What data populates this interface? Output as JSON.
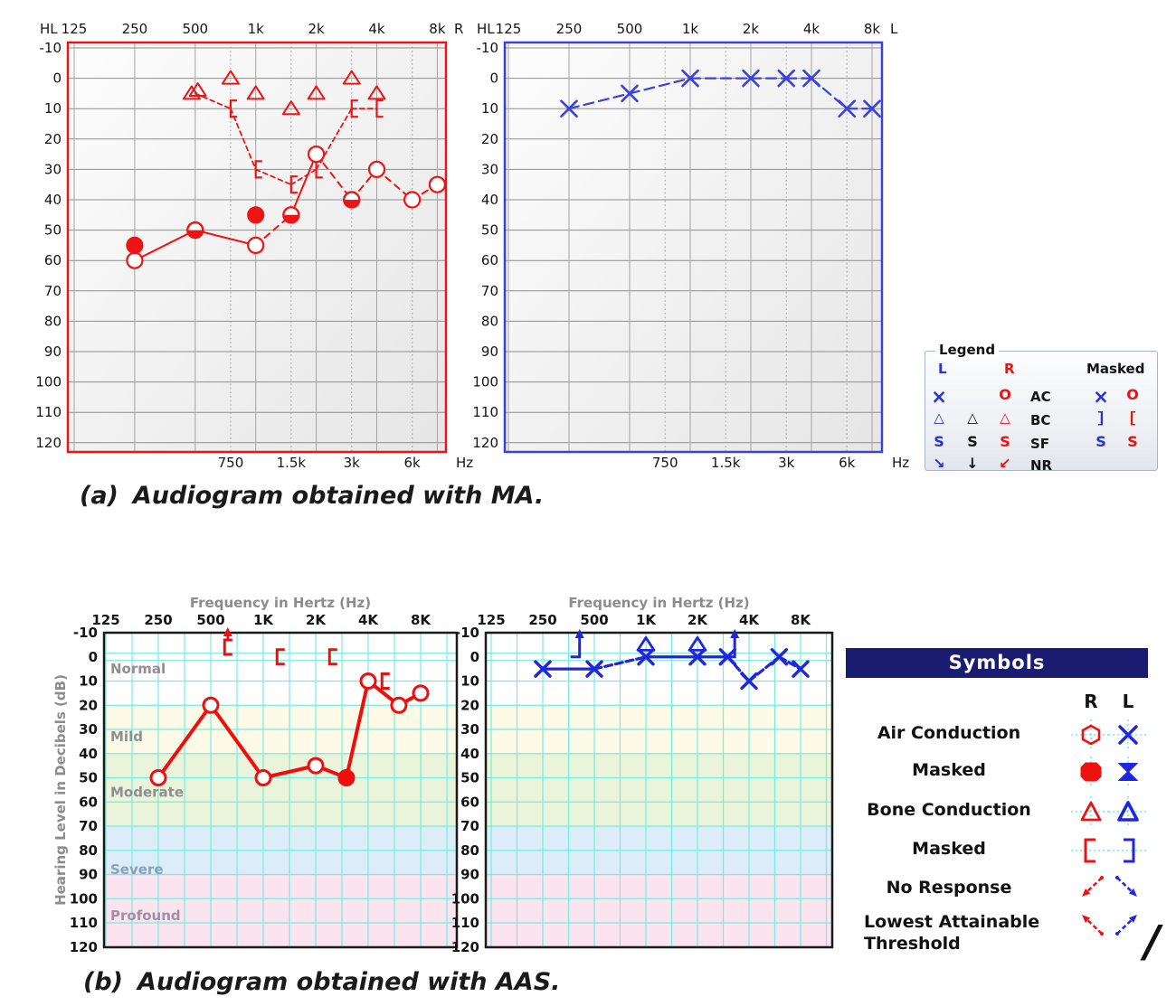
{
  "captions": {
    "a_index": "(a)",
    "a_text": "Audiogram obtained with MA.",
    "b_index": "(b)",
    "b_text": "Audiogram obtained with AAS."
  },
  "colors": {
    "right_red": "#ee1414",
    "left_blue": "#3a41dc",
    "aas_red": "#f20d0d",
    "aas_blue": "#2026e0",
    "cyan_grid": "#74eede",
    "navy_header": "#1b1b72",
    "axis_gray": "#8c8c8c"
  },
  "db_ticks": [
    "-10",
    "0",
    "10",
    "20",
    "30",
    "40",
    "50",
    "60",
    "70",
    "80",
    "90",
    "100",
    "110",
    "120"
  ],
  "chart_data": [
    {
      "id": "ma_right",
      "type": "audiogram",
      "ear_label": "R",
      "corner_label": "HL",
      "hz_label": "Hz",
      "x_ticks": [
        "125",
        "250",
        "500",
        "1k",
        "2k",
        "4k",
        "8k"
      ],
      "x_minor_ticks": [
        "750",
        "1.5k",
        "3k",
        "6k"
      ],
      "ylim": [
        -10,
        120
      ],
      "ac_line": [
        [
          250,
          60
        ],
        [
          500,
          50
        ],
        [
          1000,
          55
        ],
        [
          1500,
          45
        ],
        [
          2000,
          25
        ],
        [
          3000,
          40
        ],
        [
          4000,
          30
        ],
        [
          6000,
          40
        ],
        [
          8000,
          35
        ]
      ],
      "ac_marker_fill": [
        "open",
        "half",
        "open",
        "half",
        "open",
        "half",
        "open",
        "open",
        "open"
      ],
      "ac_masked": [
        [
          250,
          55
        ],
        [
          1000,
          45
        ]
      ],
      "bc_triangles": [
        [
          480,
          5
        ],
        [
          515,
          4
        ],
        [
          750,
          0
        ],
        [
          1000,
          5
        ],
        [
          1500,
          10
        ],
        [
          2000,
          5
        ],
        [
          3000,
          0
        ],
        [
          4000,
          5
        ]
      ],
      "bc_masked_chain": [
        [
          500,
          5
        ],
        [
          750,
          10
        ],
        [
          1000,
          30
        ],
        [
          1500,
          35
        ],
        [
          2000,
          30
        ],
        [
          3000,
          10
        ],
        [
          4000,
          10
        ]
      ]
    },
    {
      "id": "ma_left",
      "type": "audiogram",
      "ear_label": "L",
      "corner_label": "HL",
      "hz_label": "Hz",
      "x_ticks": [
        "125",
        "250",
        "500",
        "1k",
        "2k",
        "4k",
        "8k"
      ],
      "x_minor_ticks": [
        "750",
        "1.5k",
        "3k",
        "6k"
      ],
      "ylim": [
        -10,
        120
      ],
      "ac_line": [
        [
          250,
          10
        ],
        [
          500,
          5
        ],
        [
          1000,
          0
        ],
        [
          2000,
          0
        ],
        [
          3000,
          0
        ],
        [
          4000,
          0
        ],
        [
          6000,
          10
        ],
        [
          8000,
          10
        ]
      ]
    },
    {
      "id": "aas_right",
      "type": "audiogram",
      "x_title": "Frequency in Hertz (Hz)",
      "y_title": "Hearing Level in Decibels (dB)",
      "x_ticks": [
        "125",
        "250",
        "500",
        "1K",
        "2K",
        "4K",
        "8K"
      ],
      "ylim": [
        -10,
        120
      ],
      "show_band_labels": true,
      "bands": [
        {
          "label": "Normal",
          "from": -10,
          "to": 20,
          "color": "#ffffff",
          "label_color": "#8f8f8f",
          "label_db": 5
        },
        {
          "label": "Mild",
          "from": 20,
          "to": 40,
          "color": "#fdfbe7",
          "label_color": "#8f8f8f",
          "label_db": 33
        },
        {
          "label": "Moderate",
          "from": 40,
          "to": 70,
          "color": "#eaf4da",
          "label_color": "#8f8f8f",
          "label_db": 56
        },
        {
          "label": "Severe",
          "from": 70,
          "to": 90,
          "color": "#dcecf8",
          "label_color": "#86a0bd",
          "label_db": 88
        },
        {
          "label": "Profound",
          "from": 90,
          "to": 120,
          "color": "#fbe4ef",
          "label_color": "#a18fa6",
          "label_db": 107
        }
      ],
      "ac_line": [
        [
          250,
          50
        ],
        [
          500,
          20
        ],
        [
          1000,
          50
        ],
        [
          2000,
          45
        ],
        [
          3000,
          50
        ],
        [
          4000,
          10
        ],
        [
          6000,
          20
        ],
        [
          8000,
          15
        ]
      ],
      "ac_marker_fill": [
        "open",
        "open",
        "open",
        "open",
        "filled",
        "open",
        "open",
        "open"
      ],
      "bc_masked": [
        [
          1200,
          0
        ],
        [
          2400,
          0
        ],
        [
          4800,
          10
        ]
      ],
      "bracket_arrows": [
        [
          600,
          -4
        ]
      ]
    },
    {
      "id": "aas_left",
      "type": "audiogram",
      "x_title": "Frequency in Hertz (Hz)",
      "x_ticks": [
        "125",
        "250",
        "500",
        "1K",
        "2K",
        "4K",
        "8K"
      ],
      "ylim": [
        -10,
        120
      ],
      "ac_line": [
        [
          250,
          5
        ],
        [
          500,
          5
        ],
        [
          1000,
          0
        ],
        [
          2000,
          0
        ],
        [
          3000,
          0
        ],
        [
          4000,
          10
        ],
        [
          6000,
          0
        ],
        [
          8000,
          5
        ]
      ],
      "bc_triangles": [
        [
          1000,
          -5
        ],
        [
          2000,
          -5
        ]
      ],
      "bracket_arrows": [
        [
          410,
          0
        ],
        [
          3300,
          0
        ]
      ]
    }
  ],
  "legend": {
    "title": "Legend",
    "col_l": "L",
    "col_r": "R",
    "col_masked": "Masked",
    "rows": [
      {
        "label": "AC",
        "cells": [
          {
            "g": "×",
            "c": "blue"
          },
          null,
          {
            "g": "O",
            "c": "red"
          }
        ],
        "masked": [
          {
            "g": "×",
            "c": "blue"
          },
          {
            "g": "O",
            "c": "red"
          }
        ]
      },
      {
        "label": "BC",
        "cells": [
          {
            "g": "△",
            "c": "blue"
          },
          {
            "g": "△",
            "c": "black"
          },
          {
            "g": "△",
            "c": "red"
          }
        ],
        "masked": [
          {
            "g": "]",
            "c": "blue"
          },
          {
            "g": "[",
            "c": "red"
          }
        ]
      },
      {
        "label": "SF",
        "cells": [
          {
            "g": "S",
            "c": "blue"
          },
          {
            "g": "S",
            "c": "black"
          },
          {
            "g": "S",
            "c": "red"
          }
        ],
        "masked": [
          {
            "g": "S",
            "c": "blue"
          },
          {
            "g": "S",
            "c": "red"
          }
        ]
      },
      {
        "label": "NR",
        "cells": [
          {
            "g": "↘",
            "c": "blue"
          },
          {
            "g": "↓",
            "c": "black"
          },
          {
            "g": "↙",
            "c": "red"
          }
        ],
        "masked": [
          null,
          null
        ]
      }
    ]
  },
  "symbols_panel": {
    "title": "Symbols",
    "col_r": "R",
    "col_l": "L",
    "slash": "/",
    "rows": [
      {
        "label": "Air Conduction",
        "r_icon": "ac-open-red",
        "l_icon": "x-blue"
      },
      {
        "label": "Masked",
        "r_icon": "octagon-filled-red",
        "l_icon": "bowtie-filled-blue"
      },
      {
        "label": "Bone Conduction",
        "r_icon": "triangle-open-red",
        "l_icon": "triangle-open-blue"
      },
      {
        "label": "Masked",
        "r_icon": "bracket-open-red",
        "l_icon": "bracket-close-blue"
      },
      {
        "label": "No Response",
        "r_icon": "arrow-down-left-red",
        "l_icon": "arrow-down-right-blue"
      },
      {
        "label": "Lowest Attainable Threshold",
        "r_icon": "arrow-up-left-red",
        "l_icon": "arrow-up-right-blue"
      }
    ]
  }
}
